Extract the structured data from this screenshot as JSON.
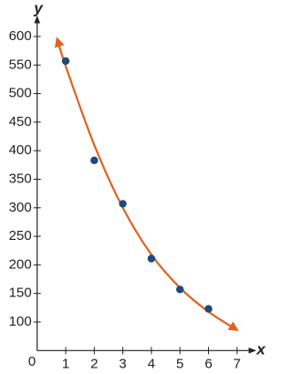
{
  "chart_data": {
    "type": "scatter",
    "x_label": "x",
    "y_label": "y",
    "origin_label": "0",
    "xlim": [
      0,
      7.6
    ],
    "ylim": [
      50,
      630
    ],
    "xticks": [
      1,
      2,
      3,
      4,
      5,
      6,
      7
    ],
    "yticks": [
      100,
      150,
      200,
      250,
      300,
      350,
      400,
      450,
      500,
      550,
      600
    ],
    "series": [
      {
        "type": "scatter",
        "color": "#1d4a7c",
        "x": [
          1,
          2,
          3,
          4,
          5,
          6
        ],
        "values": [
          557,
          383,
          307,
          211,
          157,
          123
        ]
      },
      {
        "type": "line",
        "color": "#e2621f",
        "x": [
          0.7,
          1,
          2,
          3,
          4,
          5,
          6,
          7
        ],
        "values": [
          596,
          548,
          410,
          300,
          218,
          160,
          118,
          86
        ]
      }
    ]
  }
}
